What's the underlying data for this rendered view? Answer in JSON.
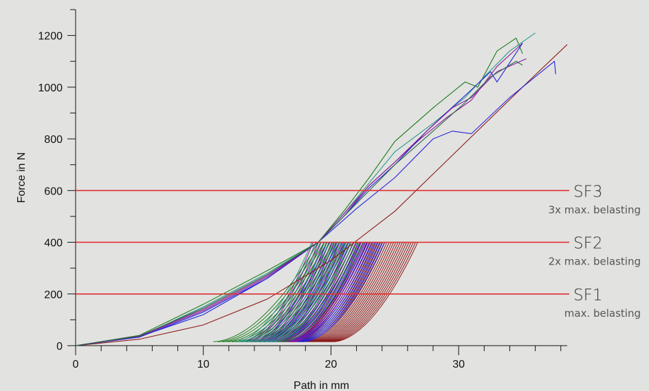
{
  "chart_data": {
    "type": "line",
    "title": "",
    "xlabel": "Path in mm",
    "ylabel": "Force in N",
    "xlim": [
      0,
      38.5
    ],
    "ylim": [
      0,
      1300
    ],
    "x_ticks": [
      0,
      10,
      20,
      30
    ],
    "y_ticks": [
      0,
      200,
      400,
      600,
      800,
      1000,
      1200
    ],
    "grid": false,
    "thresholds": [
      {
        "name": "SF1",
        "label": "max. belasting",
        "y": 200,
        "color": "#e03030"
      },
      {
        "name": "SF2",
        "label": "2x max. belasting",
        "y": 400,
        "color": "#e03030"
      },
      {
        "name": "SF3",
        "label": "3x max. belasting",
        "y": 600,
        "color": "#e03030"
      }
    ],
    "series": [
      {
        "color": "#8b1a1a",
        "x": [
          0,
          5,
          10,
          15,
          20,
          25,
          30,
          35,
          38.5
        ],
        "y": [
          0,
          25,
          80,
          180,
          330,
          520,
          760,
          1000,
          1165
        ]
      },
      {
        "color": "#2222dd",
        "x": [
          0,
          5,
          10,
          15,
          19,
          22,
          25,
          28,
          29.5,
          31,
          34,
          37.5,
          37.6
        ],
        "y": [
          0,
          35,
          120,
          260,
          400,
          530,
          650,
          800,
          830,
          820,
          960,
          1100,
          1050
        ]
      },
      {
        "color": "#1a7a1a",
        "x": [
          0,
          5,
          10,
          15,
          19,
          21,
          23,
          25,
          28,
          30.5,
          31.5,
          33,
          34.5,
          35
        ],
        "y": [
          0,
          40,
          160,
          290,
          400,
          520,
          650,
          790,
          920,
          1020,
          1000,
          1140,
          1190,
          1130
        ]
      },
      {
        "color": "#2a9a8a",
        "x": [
          0,
          5,
          10,
          15,
          19,
          21,
          23,
          25,
          28,
          30.5,
          32,
          34,
          36
        ],
        "y": [
          0,
          35,
          150,
          280,
          400,
          510,
          630,
          750,
          860,
          960,
          1040,
          1140,
          1210
        ]
      },
      {
        "color": "#8a1a9a",
        "x": [
          0,
          5,
          10,
          15,
          19,
          21,
          23,
          25,
          27,
          29,
          31,
          33,
          35
        ],
        "y": [
          0,
          38,
          140,
          270,
          400,
          500,
          620,
          710,
          800,
          880,
          950,
          1080,
          1170
        ]
      },
      {
        "color": "#2222dd",
        "x": [
          0,
          5,
          10,
          15,
          19,
          21,
          23,
          25,
          27.5,
          29,
          31,
          32.5,
          33,
          35
        ],
        "y": [
          0,
          33,
          130,
          260,
          400,
          500,
          610,
          700,
          830,
          900,
          990,
          1060,
          1020,
          1170
        ]
      },
      {
        "color": "#8a1a9a",
        "x": [
          0,
          5,
          10,
          15,
          19,
          21,
          23,
          25,
          27.5,
          29.5,
          31,
          33,
          35.3
        ],
        "y": [
          0,
          36,
          135,
          265,
          400,
          510,
          620,
          710,
          830,
          920,
          960,
          1060,
          1110
        ]
      },
      {
        "color": "#2a6a4a",
        "x": [
          0,
          5,
          10,
          15,
          19,
          21,
          23,
          25,
          28,
          30.5,
          32.5,
          34.5,
          35
        ],
        "y": [
          0,
          37,
          145,
          275,
          400,
          500,
          600,
          700,
          830,
          940,
          1040,
          1100,
          1085
        ]
      }
    ],
    "unload_groups": [
      {
        "color": "#8b1a1a",
        "x_peak": [
          22.5,
          26.8
        ],
        "x_zero": [
          16.5,
          20.2
        ],
        "count": 26
      },
      {
        "color": "#2222dd",
        "x_peak": [
          19.5,
          24.2
        ],
        "x_zero": [
          13.8,
          17.8
        ],
        "count": 26
      },
      {
        "color": "#8a1a9a",
        "x_peak": [
          18.6,
          23.0
        ],
        "x_zero": [
          13.0,
          17.0
        ],
        "count": 22
      },
      {
        "color": "#1a7a1a",
        "x_peak": [
          19.0,
          22.5
        ],
        "x_zero": [
          10.8,
          16.2
        ],
        "count": 16
      },
      {
        "color": "#2a9a8a",
        "x_peak": [
          18.5,
          21.5
        ],
        "x_zero": [
          12.5,
          15.5
        ],
        "count": 10
      }
    ]
  }
}
